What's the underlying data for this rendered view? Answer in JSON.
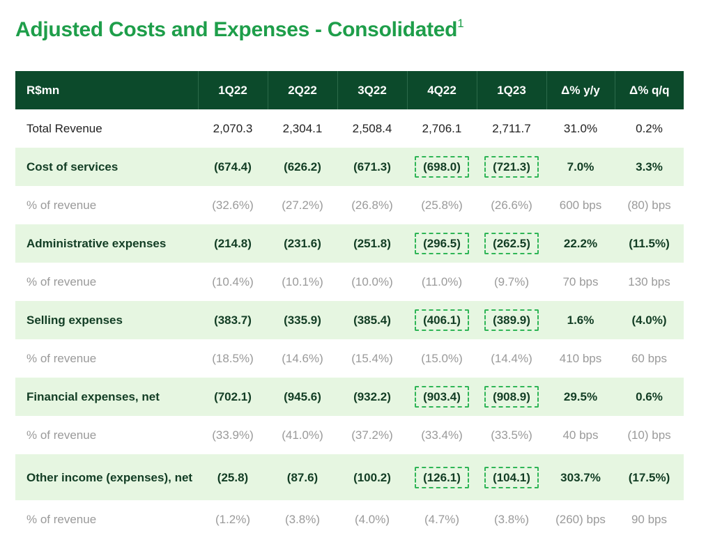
{
  "title": {
    "text": "Adjusted Costs and Expenses - Consolidated",
    "footnote": "1"
  },
  "table": {
    "headers": [
      "R$mn",
      "1Q22",
      "2Q22",
      "3Q22",
      "4Q22",
      "1Q23",
      "Δ% y/y",
      "Δ% q/q"
    ],
    "rows": [
      {
        "type": "total",
        "cells": [
          "Total Revenue",
          "2,070.3",
          "2,304.1",
          "2,508.4",
          "2,706.1",
          "2,711.7",
          "31.0%",
          "0.2%"
        ]
      },
      {
        "type": "main",
        "cells": [
          "Cost of services",
          "(674.4)",
          "(626.2)",
          "(671.3)",
          "(698.0)",
          "(721.3)",
          "7.0%",
          "3.3%"
        ]
      },
      {
        "type": "pct",
        "cells": [
          "% of revenue",
          "(32.6%)",
          "(27.2%)",
          "(26.8%)",
          "(25.8%)",
          "(26.6%)",
          "600 bps",
          "(80) bps"
        ]
      },
      {
        "type": "main",
        "cells": [
          "Administrative expenses",
          "(214.8)",
          "(231.6)",
          "(251.8)",
          "(296.5)",
          "(262.5)",
          "22.2%",
          "(11.5%)"
        ]
      },
      {
        "type": "pct",
        "cells": [
          "% of revenue",
          "(10.4%)",
          "(10.1%)",
          "(10.0%)",
          "(11.0%)",
          "(9.7%)",
          "70 bps",
          "130 bps"
        ]
      },
      {
        "type": "main",
        "cells": [
          "Selling expenses",
          "(383.7)",
          "(335.9)",
          "(385.4)",
          "(406.1)",
          "(389.9)",
          "1.6%",
          "(4.0%)"
        ]
      },
      {
        "type": "pct",
        "cells": [
          "% of revenue",
          "(18.5%)",
          "(14.6%)",
          "(15.4%)",
          "(15.0%)",
          "(14.4%)",
          "410 bps",
          "60 bps"
        ]
      },
      {
        "type": "main",
        "cells": [
          "Financial expenses, net",
          "(702.1)",
          "(945.6)",
          "(932.2)",
          "(903.4)",
          "(908.9)",
          "29.5%",
          "0.6%"
        ]
      },
      {
        "type": "pct",
        "cells": [
          "% of revenue",
          "(33.9%)",
          "(41.0%)",
          "(37.2%)",
          "(33.4%)",
          "(33.5%)",
          "40 bps",
          "(10) bps"
        ]
      },
      {
        "type": "main",
        "cells": [
          "Other income (expenses), net",
          "(25.8)",
          "(87.6)",
          "(100.2)",
          "(126.1)",
          "(104.1)",
          "303.7%",
          "(17.5%)"
        ]
      },
      {
        "type": "pct",
        "cells": [
          "% of revenue",
          "(1.2%)",
          "(3.8%)",
          "(4.0%)",
          "(4.7%)",
          "(3.8%)",
          "(260) bps",
          "90 bps"
        ]
      }
    ]
  },
  "colors": {
    "title": "#1e9e4a",
    "header_bg": "#0c4a2b",
    "highlight_row_bg": "#e6f6e1",
    "dashed_box": "#2fb556",
    "muted_text": "#9a9a9a"
  }
}
